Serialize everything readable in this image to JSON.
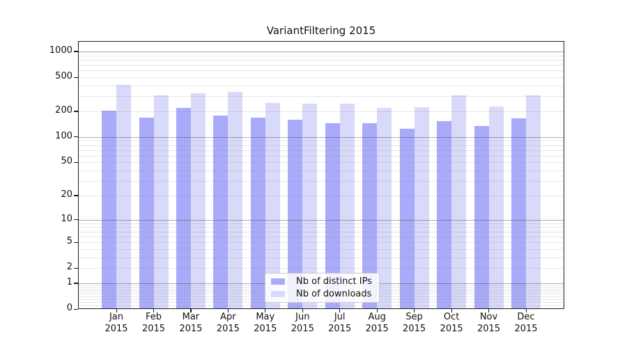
{
  "title": "VariantFiltering 2015",
  "legend": {
    "items": [
      {
        "label": "Nb of distinct IPs",
        "color": "#aaaafa"
      },
      {
        "label": "Nb of downloads",
        "color": "#d9d9fa"
      }
    ]
  },
  "chart_data": {
    "type": "bar",
    "title": "VariantFiltering 2015",
    "categories": [
      "Jan 2015",
      "Feb 2015",
      "Mar 2015",
      "Apr 2015",
      "May 2015",
      "Jun 2015",
      "Jul 2015",
      "Aug 2015",
      "Sep 2015",
      "Oct 2015",
      "Nov 2015",
      "Dec 2015"
    ],
    "series": [
      {
        "name": "Nb of distinct IPs",
        "color": "#aaaafa",
        "values": [
          205,
          170,
          220,
          180,
          170,
          160,
          145,
          145,
          125,
          155,
          135,
          165
        ]
      },
      {
        "name": "Nb of downloads",
        "color": "#d9d9fa",
        "values": [
          410,
          305,
          325,
          335,
          250,
          245,
          245,
          220,
          225,
          310,
          230,
          310
        ]
      }
    ],
    "xlabel": "",
    "ylabel": "",
    "yscale": "log1p",
    "ytick_labels": [
      1000,
      500,
      200,
      100,
      50,
      20,
      10,
      5,
      2,
      1,
      0
    ],
    "ylim": [
      0,
      1320
    ],
    "grid": true,
    "grid_major_color": "#b0b0b0",
    "grid_minor_color": "#e5e5e5",
    "axis_color": "#1a1a1a",
    "legend_position": "lower-center",
    "background_color": "#ffffff"
  }
}
